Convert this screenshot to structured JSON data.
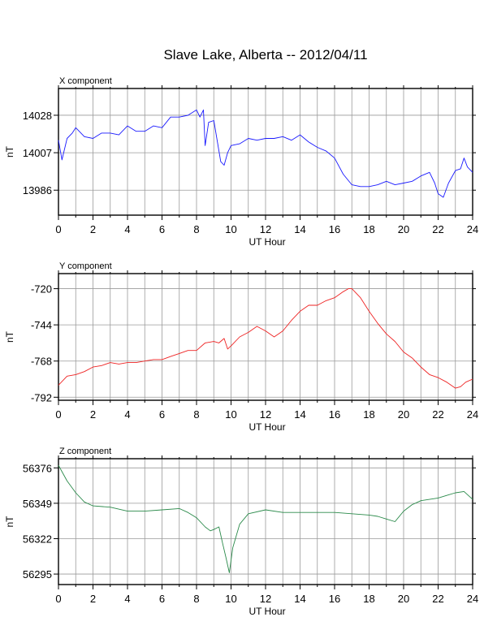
{
  "page": {
    "title": "Slave Lake, Alberta -- 2012/04/11"
  },
  "chart_data": [
    {
      "type": "line",
      "title": "X component",
      "xlabel": "UT Hour",
      "ylabel": "nT",
      "xlim": [
        0,
        24
      ],
      "ylim": [
        13972,
        14043
      ],
      "xticks": [
        0,
        2,
        4,
        6,
        8,
        10,
        12,
        14,
        16,
        18,
        20,
        22,
        24
      ],
      "yticks": [
        13986,
        14007,
        14028
      ],
      "grid": true,
      "color": "#1a1aff",
      "series": [
        {
          "x": [
            0,
            0.2,
            0.5,
            0.8,
            1.0,
            1.5,
            2.0,
            2.5,
            3.0,
            3.5,
            4.0,
            4.5,
            5.0,
            5.5,
            6.0,
            6.5,
            7.0,
            7.5,
            8.0,
            8.2,
            8.4,
            8.5,
            8.7,
            9.0,
            9.4,
            9.6,
            9.8,
            10.0,
            10.5,
            11.0,
            11.5,
            12.0,
            12.5,
            13.0,
            13.5,
            14.0,
            14.5,
            15.0,
            15.5,
            16.0,
            16.5,
            17.0,
            17.5,
            18.0,
            18.5,
            19.0,
            19.5,
            20.0,
            20.5,
            21.0,
            21.5,
            21.8,
            22.0,
            22.3,
            22.6,
            23.0,
            23.3,
            23.5,
            23.7,
            24.0
          ],
          "y": [
            14014,
            14003,
            14015,
            14018,
            14021,
            14016,
            14015,
            14018,
            14018,
            14017,
            14022,
            14019,
            14019,
            14022,
            14021,
            14027,
            14027,
            14028,
            14031,
            14027,
            14031,
            14011,
            14024,
            14025,
            14002,
            14000,
            14007,
            14011,
            14012,
            14015,
            14014,
            14015,
            14015,
            14016,
            14014,
            14017,
            14013,
            14010,
            14008,
            14004,
            13995,
            13989,
            13988,
            13988,
            13989,
            13991,
            13989,
            13990,
            13991,
            13994,
            13996,
            13990,
            13984,
            13982,
            13990,
            13997,
            13998,
            14004,
            13999,
            13996
          ]
        }
      ]
    },
    {
      "type": "line",
      "title": "Y component",
      "xlabel": "UT Hour",
      "ylabel": "nT",
      "xlim": [
        0,
        24
      ],
      "ylim": [
        -794,
        -710
      ],
      "xticks": [
        0,
        2,
        4,
        6,
        8,
        10,
        12,
        14,
        16,
        18,
        20,
        22,
        24
      ],
      "yticks": [
        -720,
        -744,
        -768,
        -792
      ],
      "grid": true,
      "color": "#ee2222",
      "series": [
        {
          "x": [
            0,
            0.5,
            1.0,
            1.5,
            2.0,
            2.5,
            3.0,
            3.5,
            4.0,
            4.5,
            5.0,
            5.5,
            6.0,
            6.5,
            7.0,
            7.5,
            8.0,
            8.5,
            9.0,
            9.3,
            9.6,
            9.8,
            10.0,
            10.5,
            11.0,
            11.5,
            12.0,
            12.5,
            13.0,
            13.5,
            14.0,
            14.5,
            15.0,
            15.5,
            16.0,
            16.5,
            16.8,
            17.0,
            17.5,
            18.0,
            18.5,
            19.0,
            19.5,
            20.0,
            20.5,
            21.0,
            21.5,
            22.0,
            22.5,
            23.0,
            23.3,
            23.6,
            24.0
          ],
          "y": [
            -784,
            -778,
            -777,
            -775,
            -772,
            -771,
            -769,
            -770,
            -769,
            -769,
            -768,
            -767,
            -767,
            -765,
            -763,
            -761,
            -761,
            -756,
            -755,
            -756,
            -753,
            -760,
            -758,
            -752,
            -749,
            -745,
            -748,
            -752,
            -748,
            -741,
            -735,
            -731,
            -731,
            -728,
            -726,
            -722,
            -720,
            -720,
            -726,
            -735,
            -743,
            -750,
            -755,
            -762,
            -766,
            -772,
            -777,
            -779,
            -782,
            -786,
            -785,
            -782,
            -780
          ]
        }
      ]
    },
    {
      "type": "line",
      "title": "Z component",
      "xlabel": "UT Hour",
      "ylabel": "nT",
      "xlim": [
        0,
        24
      ],
      "ylim": [
        56287,
        56383
      ],
      "xticks": [
        0,
        2,
        4,
        6,
        8,
        10,
        12,
        14,
        16,
        18,
        20,
        22,
        24
      ],
      "yticks": [
        56295,
        56322,
        56349,
        56376
      ],
      "grid": true,
      "color": "#2a8a4a",
      "series": [
        {
          "x": [
            0,
            0.5,
            1.0,
            1.5,
            2.0,
            3.0,
            4.0,
            5.0,
            6.0,
            7.0,
            7.5,
            8.0,
            8.5,
            8.8,
            9.0,
            9.3,
            9.5,
            9.7,
            9.9,
            10.1,
            10.5,
            11.0,
            12.0,
            13.0,
            14.0,
            15.0,
            16.0,
            17.0,
            18.0,
            18.5,
            19.0,
            19.5,
            20.0,
            20.5,
            21.0,
            21.5,
            22.0,
            22.5,
            23.0,
            23.5,
            24.0
          ],
          "y": [
            56378,
            56366,
            56357,
            56350,
            56347,
            56346,
            56343,
            56343,
            56344,
            56345,
            56342,
            56338,
            56331,
            56328,
            56329,
            56331,
            56319,
            56308,
            56296,
            56315,
            56333,
            56341,
            56344,
            56342,
            56342,
            56342,
            56342,
            56341,
            56340,
            56339,
            56337,
            56335,
            56343,
            56348,
            56351,
            56352,
            56353,
            56355,
            56357,
            56358,
            56352
          ]
        }
      ]
    }
  ]
}
